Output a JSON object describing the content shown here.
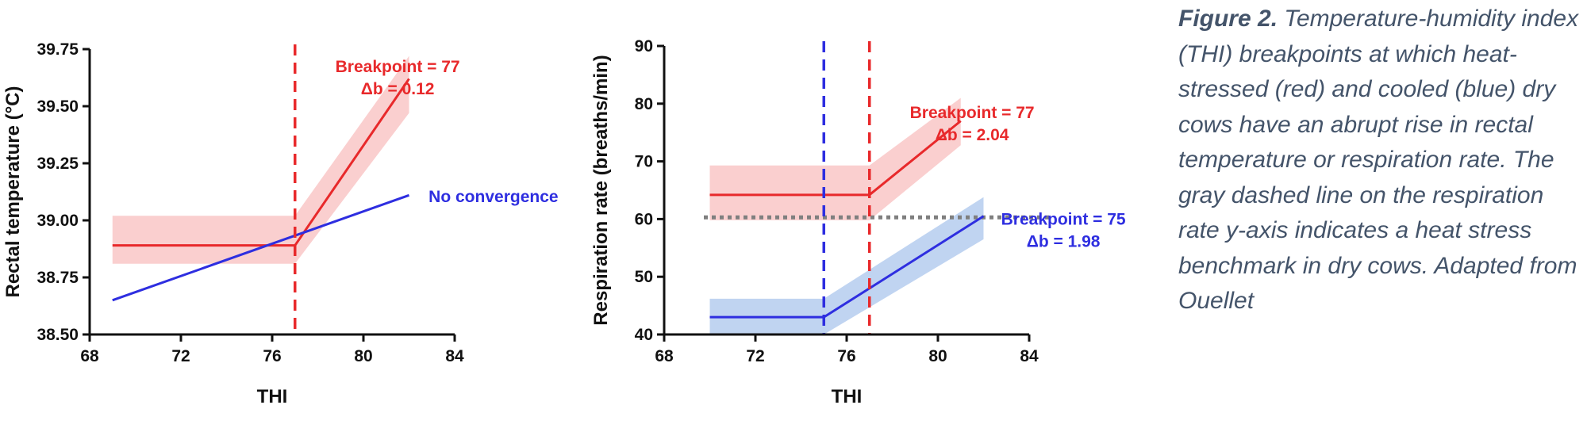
{
  "caption": {
    "lead": "Figure 2.",
    "text": "Temperature-humidity index (THI) breakpoints at which heat-stressed (red) and cooled (blue) dry cows have an abrupt rise in rectal temperature or respiration rate. The gray dashed line on the respiration rate y-axis indicates a heat stress benchmark in dry cows. Adapted from Ouellet"
  },
  "colors": {
    "heat_stressed": "#e8292b",
    "heat_stressed_band": "#f9c7c7",
    "cooled": "#2e2ee0",
    "cooled_band": "#b5cdee",
    "benchmark": "#7f7f7f"
  },
  "chart_data": [
    {
      "type": "line",
      "xlabel": "THI",
      "ylabel": "Rectal temperature (°C)",
      "xlim": [
        68,
        84
      ],
      "ylim": [
        38.5,
        39.75
      ],
      "xticks": [
        68,
        72,
        76,
        80,
        84
      ],
      "yticks": [
        "38.50",
        "38.75",
        "39.00",
        "39.25",
        "39.50",
        "39.75"
      ],
      "series": [
        {
          "color_key": "heat_stressed",
          "x": [
            69,
            77,
            82
          ],
          "y": [
            38.89,
            38.89,
            39.62
          ],
          "band_upper": [
            39.02,
            39.02,
            39.72
          ],
          "band_lower": [
            38.81,
            38.81,
            39.47
          ]
        },
        {
          "color_key": "cooled",
          "x": [
            69,
            82
          ],
          "y": [
            38.65,
            39.11
          ]
        }
      ],
      "vlines": [
        {
          "x": 77,
          "color_key": "heat_stressed"
        }
      ],
      "annotations": [
        {
          "lines": [
            "Breakpoint = 77",
            "Δb = 0.12"
          ],
          "x": 81.5,
          "y": 39.65,
          "color_key": "heat_stressed"
        },
        {
          "lines": [
            "No convergence"
          ],
          "x": 85.7,
          "y": 39.08,
          "color_key": "cooled"
        }
      ]
    },
    {
      "type": "line",
      "xlabel": "THI",
      "ylabel": "Respiration rate (breaths/min)",
      "xlim": [
        68,
        84
      ],
      "ylim": [
        40,
        90
      ],
      "xticks": [
        68,
        72,
        76,
        80,
        84
      ],
      "yticks": [
        "40",
        "50",
        "60",
        "70",
        "80",
        "90"
      ],
      "series": [
        {
          "color_key": "heat_stressed",
          "x": [
            70,
            77,
            81
          ],
          "y": [
            64.2,
            64.2,
            77
          ],
          "band_upper": [
            69.3,
            69.3,
            81
          ],
          "band_lower": [
            59.8,
            59.8,
            72.8
          ]
        },
        {
          "color_key": "cooled",
          "x": [
            70,
            75,
            82
          ],
          "y": [
            43,
            43,
            60.5
          ],
          "band_upper": [
            46.2,
            46.2,
            63.8
          ],
          "band_lower": [
            40,
            40,
            56.5
          ]
        }
      ],
      "vlines": [
        {
          "x": 75,
          "color_key": "cooled"
        },
        {
          "x": 77,
          "color_key": "heat_stressed"
        }
      ],
      "hlines": [
        {
          "y": 60.3,
          "color_key": "benchmark"
        }
      ],
      "annotations": [
        {
          "lines": [
            "Breakpoint = 77",
            "Δb = 2.04"
          ],
          "x": 81.5,
          "y": 77.5,
          "color_key": "heat_stressed"
        },
        {
          "lines": [
            "Breakpoint = 75",
            "Δb = 1.98"
          ],
          "x": 85.5,
          "y": 59,
          "color_key": "cooled"
        }
      ]
    }
  ]
}
